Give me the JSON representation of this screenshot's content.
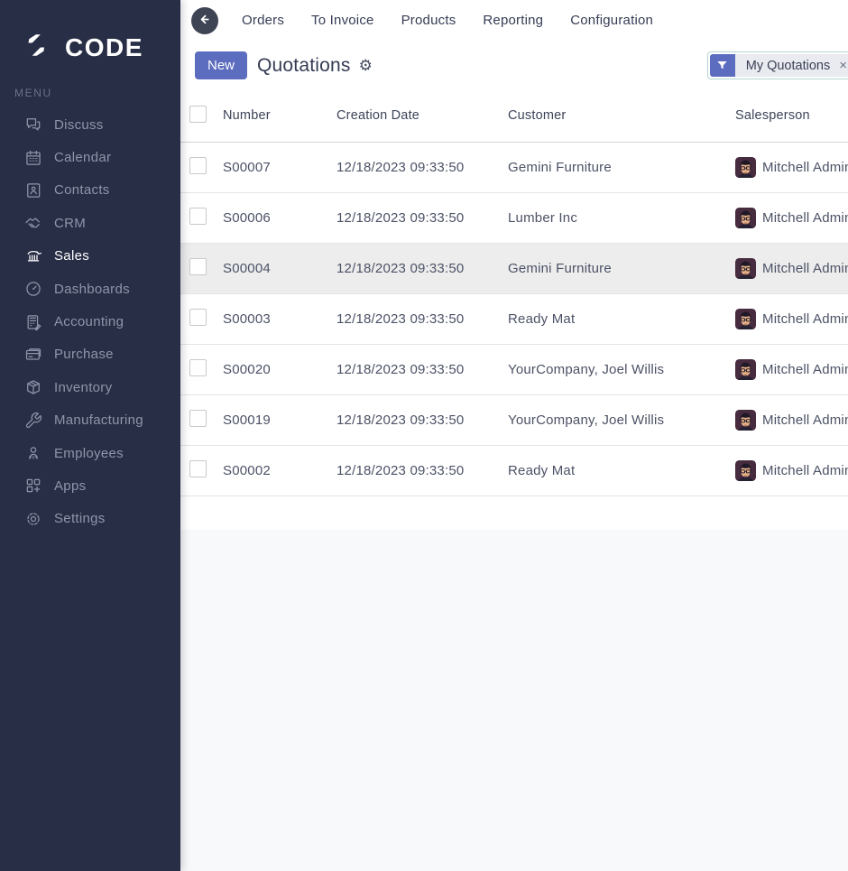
{
  "sidebar": {
    "logo_text": "CODE",
    "menu_label": "MENU",
    "items": [
      {
        "label": "Discuss",
        "icon": "discuss-icon",
        "active": false
      },
      {
        "label": "Calendar",
        "icon": "calendar-icon",
        "active": false
      },
      {
        "label": "Contacts",
        "icon": "contacts-icon",
        "active": false
      },
      {
        "label": "CRM",
        "icon": "crm-icon",
        "active": false
      },
      {
        "label": "Sales",
        "icon": "sales-icon",
        "active": true
      },
      {
        "label": "Dashboards",
        "icon": "dashboards-icon",
        "active": false
      },
      {
        "label": "Accounting",
        "icon": "accounting-icon",
        "active": false
      },
      {
        "label": "Purchase",
        "icon": "purchase-icon",
        "active": false
      },
      {
        "label": "Inventory",
        "icon": "inventory-icon",
        "active": false
      },
      {
        "label": "Manufacturing",
        "icon": "manufacturing-icon",
        "active": false
      },
      {
        "label": "Employees",
        "icon": "employees-icon",
        "active": false
      },
      {
        "label": "Apps",
        "icon": "apps-icon",
        "active": false
      },
      {
        "label": "Settings",
        "icon": "settings-icon",
        "active": false
      }
    ]
  },
  "topnav": {
    "back_icon": "arrow-left-icon",
    "links": [
      "Orders",
      "To Invoice",
      "Products",
      "Reporting",
      "Configuration"
    ]
  },
  "control_panel": {
    "new_button_label": "New",
    "title": "Quotations",
    "gear_glyph": "⚙",
    "filter": {
      "icon": "funnel-icon",
      "label": "My Quotations",
      "remove_glyph": "×"
    }
  },
  "table": {
    "columns": [
      "Number",
      "Creation Date",
      "Customer",
      "Salesperson"
    ],
    "rows": [
      {
        "number": "S00007",
        "creation_date": "12/18/2023 09:33:50",
        "customer": "Gemini Furniture",
        "salesperson": "Mitchell Admin",
        "highlighted": false
      },
      {
        "number": "S00006",
        "creation_date": "12/18/2023 09:33:50",
        "customer": "Lumber Inc",
        "salesperson": "Mitchell Admin",
        "highlighted": false
      },
      {
        "number": "S00004",
        "creation_date": "12/18/2023 09:33:50",
        "customer": "Gemini Furniture",
        "salesperson": "Mitchell Admin",
        "highlighted": true
      },
      {
        "number": "S00003",
        "creation_date": "12/18/2023 09:33:50",
        "customer": "Ready Mat",
        "salesperson": "Mitchell Admin",
        "highlighted": false
      },
      {
        "number": "S00020",
        "creation_date": "12/18/2023 09:33:50",
        "customer": "YourCompany, Joel Willis",
        "salesperson": "Mitchell Admin",
        "highlighted": false
      },
      {
        "number": "S00019",
        "creation_date": "12/18/2023 09:33:50",
        "customer": "YourCompany, Joel Willis",
        "salesperson": "Mitchell Admin",
        "highlighted": false
      },
      {
        "number": "S00002",
        "creation_date": "12/18/2023 09:33:50",
        "customer": "Ready Mat",
        "salesperson": "Mitchell Admin",
        "highlighted": false
      }
    ]
  },
  "colors": {
    "sidebar_bg": "#282E45",
    "accent_indigo": "#5C6CBE",
    "page_bg": "#F8F9FB",
    "row_highlight": "#EDEDED",
    "chip_border": "#B2D6D2",
    "facet_bg": "#E9EBF0",
    "avatar_bg": "#472B3F"
  }
}
